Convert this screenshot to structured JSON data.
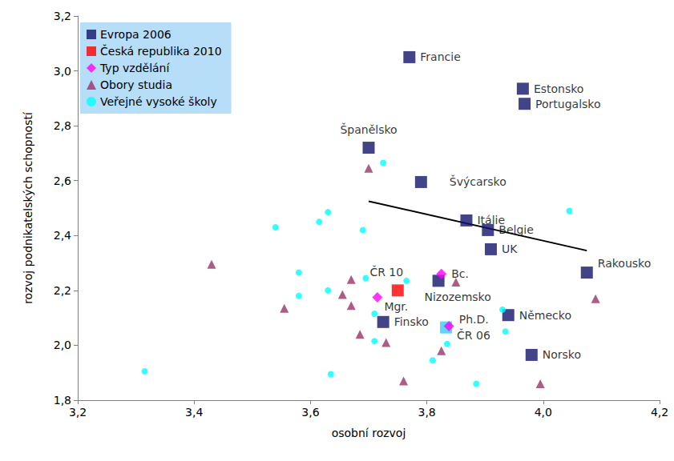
{
  "chart_data": {
    "type": "scatter",
    "x_label": "osobní rozvoj",
    "y_label": "rozvoj podnikatelských schopností",
    "xlim": [
      3.2,
      4.2
    ],
    "xticks": [
      {
        "value": 3.2,
        "label": "3,2"
      },
      {
        "value": 3.4,
        "label": "3,4"
      },
      {
        "value": 3.6,
        "label": "3,6"
      },
      {
        "value": 3.8,
        "label": "3,8"
      },
      {
        "value": 4.0,
        "label": "4,0"
      },
      {
        "value": 4.2,
        "label": "4,2"
      }
    ],
    "ylim": [
      1.8,
      3.2
    ],
    "yticks": [
      {
        "value": 1.8,
        "label": "1,8"
      },
      {
        "value": 2.0,
        "label": "2,0"
      },
      {
        "value": 2.2,
        "label": "2,2"
      },
      {
        "value": 2.4,
        "label": "2,4"
      },
      {
        "value": 2.6,
        "label": "2,6"
      },
      {
        "value": 2.8,
        "label": "2,8"
      },
      {
        "value": 3.0,
        "label": "3,0"
      },
      {
        "value": 3.2,
        "label": "3,2"
      }
    ],
    "grid": false,
    "legend": "upper left",
    "series": [
      {
        "name": "Evropa 2006",
        "color": "#14146b",
        "marker": "square",
        "x": [
          3.77,
          3.965,
          3.968,
          3.7,
          3.79,
          3.868,
          3.905,
          3.91,
          4.075,
          3.82,
          3.725,
          3.94,
          3.98,
          3.833
        ],
        "values": [
          3.05,
          2.935,
          2.88,
          2.72,
          2.595,
          2.455,
          2.42,
          2.35,
          2.265,
          2.235,
          2.085,
          2.11,
          1.965,
          2.065
        ],
        "labels": [
          "Francie",
          "Estonsko",
          "Portugalsko",
          "Španělsko",
          "Švýcarsko",
          "Itálie",
          "Belgie",
          "UK",
          "Rakousko",
          "Nizozemsko",
          "Finsko",
          "Německo",
          "Norsko",
          "ČR 06"
        ],
        "colors": [
          "#14146b",
          "#14146b",
          "#14146b",
          "#14146b",
          "#14146b",
          "#14146b",
          "#14146b",
          "#14146b",
          "#14146b",
          "#14146b",
          "#14146b",
          "#14146b",
          "#14146b",
          "#33ccff"
        ]
      },
      {
        "name": "Česká republika 2010",
        "color": "#ff0000",
        "marker": "square",
        "x": [
          3.75
        ],
        "values": [
          2.2
        ],
        "labels": [
          "ČR 10"
        ]
      },
      {
        "name": "Typ vzdělání",
        "color": "#ff00ff",
        "marker": "diamond",
        "x": [
          3.825,
          3.715,
          3.838
        ],
        "values": [
          2.26,
          2.175,
          2.07
        ],
        "labels": [
          "Bc.",
          "Mgr.",
          "Ph.D."
        ]
      },
      {
        "name": "Obory studia",
        "color": "#993366",
        "marker": "triangle",
        "x": [
          3.7,
          3.43,
          3.555,
          3.655,
          3.67,
          3.67,
          3.685,
          3.73,
          3.76,
          3.825,
          3.85,
          3.995,
          4.09
        ],
        "values": [
          2.645,
          2.295,
          2.135,
          2.185,
          2.24,
          2.145,
          2.04,
          2.01,
          1.87,
          1.98,
          2.23,
          1.86,
          2.17
        ]
      },
      {
        "name": "Veřejné vysoké školy",
        "color": "#00ffff",
        "marker": "circle",
        "x": [
          3.315,
          3.54,
          3.58,
          3.58,
          3.615,
          3.63,
          3.63,
          3.635,
          3.69,
          3.695,
          3.71,
          3.71,
          3.725,
          3.765,
          3.81,
          3.835,
          3.885,
          3.93,
          3.935,
          4.045
        ],
        "values": [
          1.905,
          2.43,
          2.265,
          2.18,
          2.45,
          2.485,
          2.2,
          1.895,
          2.42,
          2.245,
          2.115,
          2.015,
          2.665,
          2.235,
          1.945,
          2.005,
          1.86,
          2.13,
          2.05,
          2.49
        ]
      },
      {
        "type": "line",
        "color": "#000000",
        "line_style": "solid",
        "x": [
          3.7,
          4.075
        ],
        "values": [
          2.525,
          2.345
        ]
      }
    ]
  }
}
